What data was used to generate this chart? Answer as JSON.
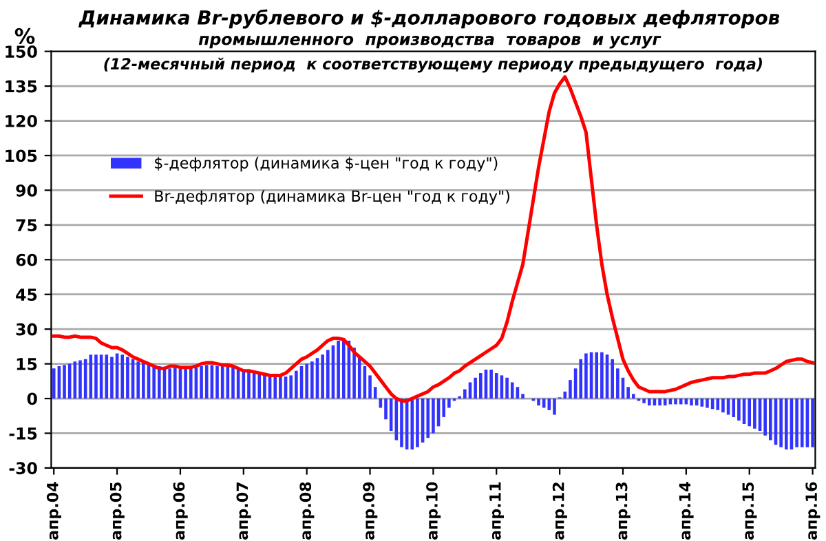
{
  "chart_data": {
    "type": "bar",
    "title": "Динамика Br-рублевого и $-долларового годовых дефляторов",
    "subtitle": "промышленного  производства  товаров  и услуг",
    "annotations": [
      "(12-месячный период  к соответствующему периоду предыдущего  года)"
    ],
    "ylabel": "%",
    "categories": [
      "апр.04",
      null,
      null,
      null,
      null,
      null,
      null,
      null,
      null,
      null,
      null,
      null,
      "апр.05",
      null,
      null,
      null,
      null,
      null,
      null,
      null,
      null,
      null,
      null,
      null,
      "апр.06",
      null,
      null,
      null,
      null,
      null,
      null,
      null,
      null,
      null,
      null,
      null,
      "апр.07",
      null,
      null,
      null,
      null,
      null,
      null,
      null,
      null,
      null,
      null,
      null,
      "апр.08",
      null,
      null,
      null,
      null,
      null,
      null,
      null,
      null,
      null,
      null,
      null,
      "апр.09",
      null,
      null,
      null,
      null,
      null,
      null,
      null,
      null,
      null,
      null,
      null,
      "апр.10",
      null,
      null,
      null,
      null,
      null,
      null,
      null,
      null,
      null,
      null,
      null,
      "апр.11",
      null,
      null,
      null,
      null,
      null,
      null,
      null,
      null,
      null,
      null,
      null,
      "апр.12",
      null,
      null,
      null,
      null,
      null,
      null,
      null,
      null,
      null,
      null,
      null,
      "апр.13",
      null,
      null,
      null,
      null,
      null,
      null,
      null,
      null,
      null,
      null,
      null,
      "апр.14",
      null,
      null,
      null,
      null,
      null,
      null,
      null,
      null,
      null,
      null,
      null,
      "апр.15",
      null,
      null,
      null,
      null,
      null,
      null,
      null,
      null,
      null,
      null,
      null,
      "апр.16"
    ],
    "series": [
      {
        "name": "$-дефлятор (динамика $-цен \"год к году\")",
        "color": "#3333ff",
        "values": [
          13,
          14,
          14.5,
          15,
          16,
          16.5,
          17,
          19,
          19,
          19,
          19,
          18,
          19.5,
          19,
          18,
          17,
          16,
          15.5,
          15,
          14.5,
          14,
          13,
          13,
          13.5,
          13,
          13,
          13.5,
          13.5,
          14,
          14.5,
          14.5,
          14,
          14,
          14,
          13.5,
          13,
          12.5,
          12,
          11.5,
          11,
          11,
          10.5,
          10,
          9.5,
          9.5,
          10,
          12,
          14,
          15,
          16,
          17.5,
          19,
          21,
          23,
          25,
          26,
          25,
          22,
          18,
          14,
          10,
          5,
          -4,
          -9,
          -14,
          -18,
          -21,
          -22,
          -22,
          -21,
          -19,
          -17,
          -15,
          -12,
          -8,
          -4,
          -1,
          1,
          4,
          7,
          9,
          11,
          12.5,
          12.5,
          11,
          10,
          9,
          7,
          5,
          2,
          0,
          -1,
          -3,
          -4,
          -5,
          -7,
          0.5,
          3,
          8,
          13,
          17,
          19.5,
          20,
          20,
          20,
          19,
          17,
          13,
          9,
          5,
          2,
          -1,
          -2,
          -3,
          -3,
          -3,
          -3,
          -2.5,
          -2.5,
          -2.5,
          -2.5,
          -3,
          -3,
          -3.5,
          -4,
          -4.5,
          -5,
          -6,
          -7,
          -8,
          -9.5,
          -11,
          -12,
          -13,
          -14,
          -16,
          -18,
          -20,
          -21,
          -22,
          -22,
          -21,
          -21,
          -21,
          -21
        ]
      },
      {
        "name": "Br-дефлятор (динамика Br-цен \"год к году\")",
        "type": "line",
        "color": "#ff0000",
        "values": [
          27,
          27,
          26.5,
          26.5,
          27,
          26.5,
          26.5,
          26.5,
          26,
          24,
          23,
          22,
          22,
          21,
          19.5,
          18,
          17,
          16,
          15,
          14,
          13,
          13,
          14,
          14,
          13.5,
          13.5,
          13.5,
          14,
          15,
          15.5,
          15.5,
          15,
          14.5,
          14.5,
          14,
          13,
          12,
          12,
          11.5,
          11,
          10.5,
          10,
          10,
          10,
          11,
          13,
          15,
          17,
          18,
          19.5,
          21,
          23,
          25,
          26,
          26,
          25.5,
          23,
          20,
          18,
          16,
          14,
          11,
          8,
          5,
          2,
          0,
          -1,
          -1,
          0,
          1,
          2,
          3,
          5,
          6,
          7.5,
          9,
          11,
          12,
          14,
          15.5,
          17,
          18.5,
          20,
          21.5,
          23,
          26,
          33,
          42,
          50,
          58,
          72,
          86,
          100,
          112,
          124,
          132,
          136,
          139,
          134,
          128,
          122,
          115,
          95,
          75,
          58,
          45,
          35,
          26,
          17,
          12,
          8,
          5,
          4,
          3,
          3,
          3,
          3,
          3.5,
          4,
          5,
          6,
          7,
          7.5,
          8,
          8.5,
          9,
          9,
          9,
          9.5,
          9.5,
          10,
          10.5,
          10.5,
          11,
          11,
          11,
          12,
          13,
          14.5,
          16,
          16.5,
          17,
          17,
          16,
          15.5
        ]
      }
    ],
    "ylim": [
      -30,
      150
    ],
    "yticks": [
      -30,
      -15,
      0,
      15,
      30,
      45,
      60,
      75,
      90,
      105,
      120,
      135,
      150
    ],
    "grid": "y",
    "legend": "top left"
  }
}
